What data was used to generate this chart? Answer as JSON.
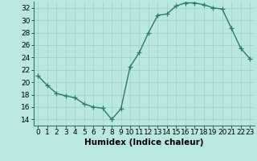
{
  "x": [
    0,
    1,
    2,
    3,
    4,
    5,
    6,
    7,
    8,
    9,
    10,
    11,
    12,
    13,
    14,
    15,
    16,
    17,
    18,
    19,
    20,
    21,
    22,
    23
  ],
  "y": [
    21,
    19.5,
    18.2,
    17.8,
    17.5,
    16.5,
    16.0,
    15.8,
    14.0,
    15.7,
    22.5,
    24.8,
    28.0,
    30.8,
    31.0,
    32.3,
    32.8,
    32.8,
    32.5,
    32.0,
    31.8,
    28.7,
    25.5,
    23.8
  ],
  "line_color": "#2d7a6e",
  "marker": "+",
  "marker_size": 4,
  "bg_color": "#b8e8e0",
  "grid_color": "#9ecfca",
  "xlabel": "Humidex (Indice chaleur)",
  "xlim": [
    -0.5,
    23.5
  ],
  "ylim": [
    13,
    33
  ],
  "yticks": [
    14,
    16,
    18,
    20,
    22,
    24,
    26,
    28,
    30,
    32
  ],
  "xticks": [
    0,
    1,
    2,
    3,
    4,
    5,
    6,
    7,
    8,
    9,
    10,
    11,
    12,
    13,
    14,
    15,
    16,
    17,
    18,
    19,
    20,
    21,
    22,
    23
  ],
  "xlabel_fontsize": 7.5,
  "tick_fontsize": 6.5,
  "line_width": 1.0
}
